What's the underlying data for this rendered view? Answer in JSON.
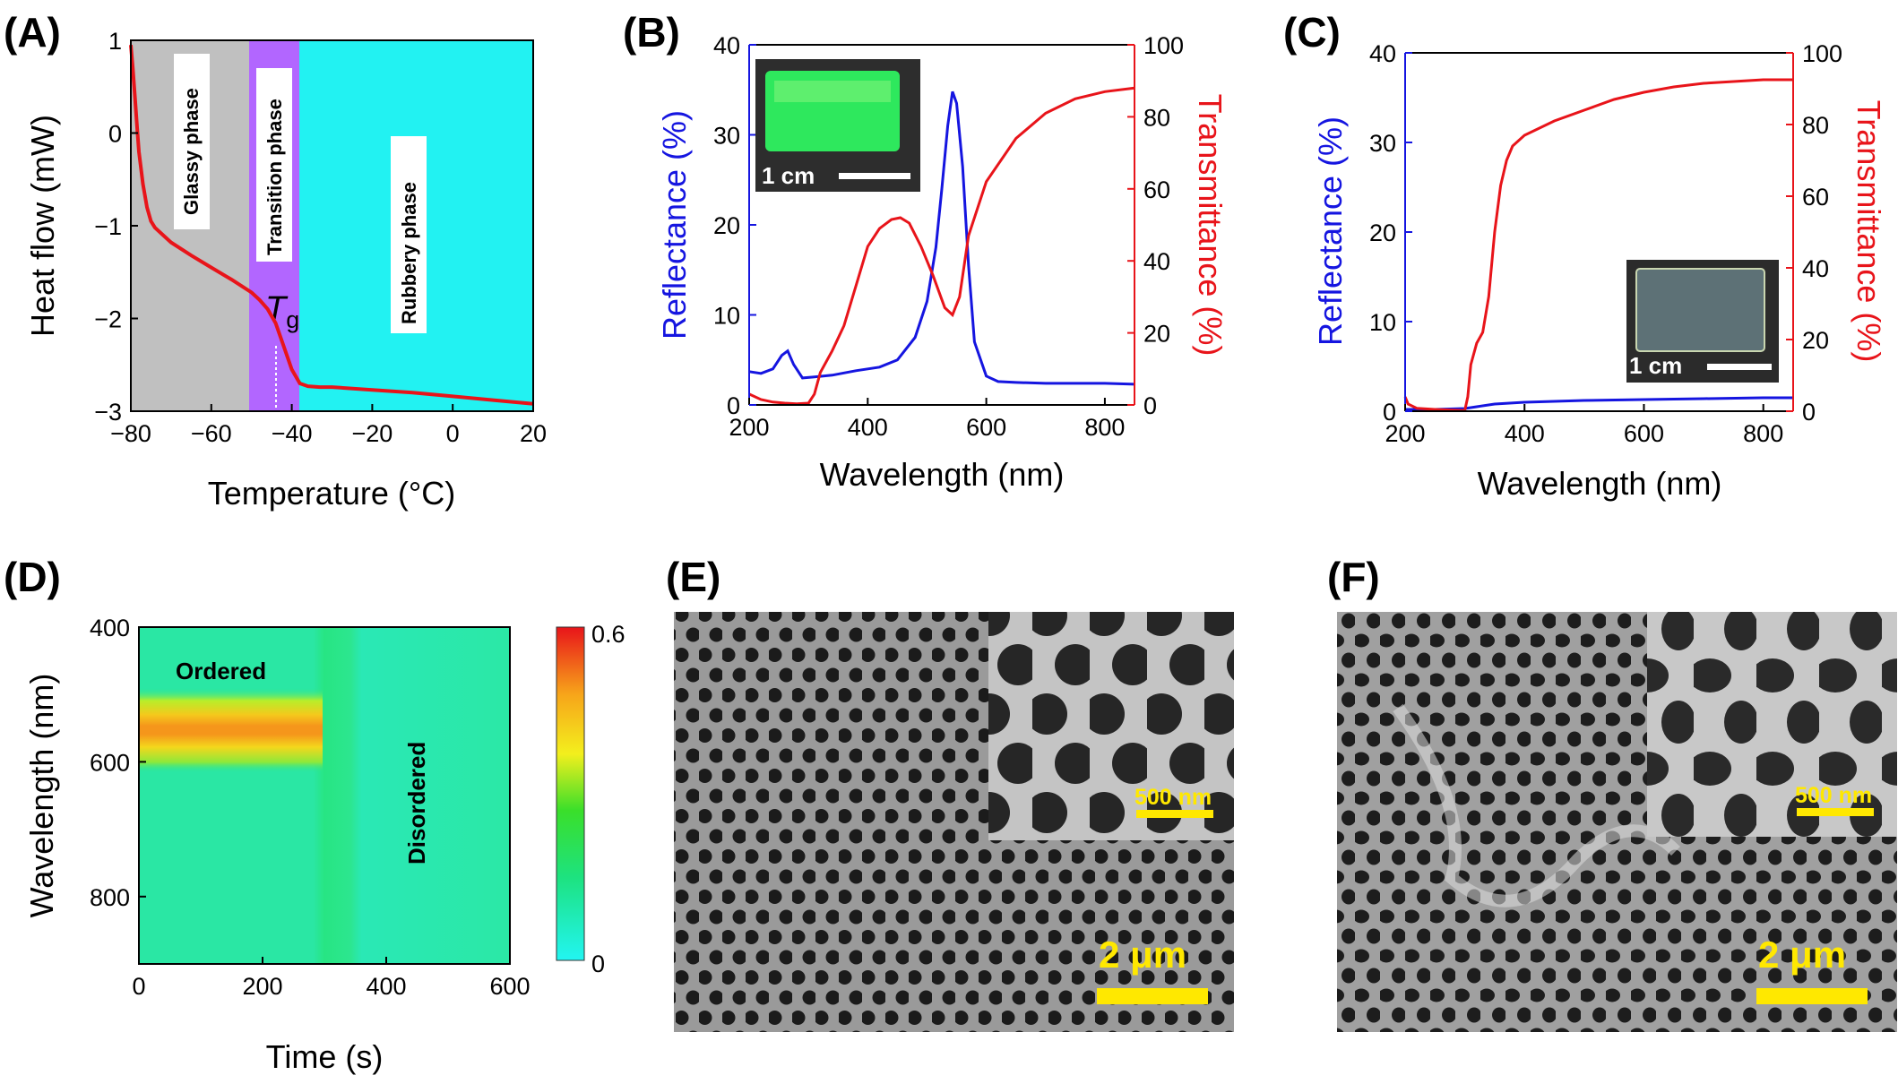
{
  "panels": {
    "A": {
      "label": "(A)"
    },
    "B": {
      "label": "(B)"
    },
    "C": {
      "label": "(C)"
    },
    "D": {
      "label": "(D)"
    },
    "E": {
      "label": "(E)"
    },
    "F": {
      "label": "(F)"
    }
  },
  "chart_data": [
    {
      "panel": "A",
      "type": "line",
      "xlabel": "Temperature (°C)",
      "ylabel": "Heat flow (mW)",
      "xlim": [
        -80,
        20
      ],
      "ylim": [
        -3,
        1
      ],
      "xticks": [
        "−80",
        "−60",
        "−40",
        "−20",
        "0",
        "20"
      ],
      "yticks": [
        "1",
        "0",
        "−1",
        "−2",
        "−3"
      ],
      "regions": [
        {
          "label": "Glassy phase",
          "from": -80,
          "to": -49,
          "color": "#c0c0c0"
        },
        {
          "label": "Transition phase",
          "from": -49,
          "to": -37.5,
          "color": "#b266ff"
        },
        {
          "label": "Rubbery phase",
          "from": -37.5,
          "to": 20,
          "color": "#22f2f2"
        }
      ],
      "annotation": {
        "text": "T",
        "subscript": "g",
        "x": -43.5
      },
      "series": [
        {
          "color": "#e8141a",
          "x": [
            -80,
            -79.5,
            -79,
            -78.5,
            -78,
            -77,
            -76,
            -75,
            -74,
            -72,
            -70,
            -65,
            -60,
            -55,
            -50,
            -48,
            -46,
            -44,
            -42,
            -40,
            -38,
            -36,
            -33,
            -30,
            -20,
            -10,
            0,
            10,
            20
          ],
          "y": [
            0.95,
            0.7,
            0.4,
            0.1,
            -0.2,
            -0.55,
            -0.8,
            -0.95,
            -1.02,
            -1.1,
            -1.18,
            -1.32,
            -1.45,
            -1.58,
            -1.72,
            -1.8,
            -1.9,
            -2.05,
            -2.3,
            -2.55,
            -2.7,
            -2.73,
            -2.74,
            -2.74,
            -2.77,
            -2.8,
            -2.84,
            -2.88,
            -2.92
          ]
        }
      ]
    },
    {
      "panel": "B",
      "type": "line",
      "xlabel": "Wavelength (nm)",
      "ylabel": "Reflectance (%)",
      "y2label": "Transmittance (%)",
      "xlim": [
        200,
        850
      ],
      "ylim": [
        0,
        40
      ],
      "y2lim": [
        0,
        100
      ],
      "xticks": [
        "200",
        "400",
        "600",
        "800"
      ],
      "yticks": [
        "0",
        "10",
        "20",
        "30",
        "40"
      ],
      "y2ticks": [
        "0",
        "20",
        "40",
        "60",
        "80",
        "100"
      ],
      "inset": {
        "scale_label": "1 cm"
      },
      "series": [
        {
          "axis": "left",
          "color": "#1515e0",
          "x": [
            200,
            220,
            240,
            255,
            265,
            275,
            290,
            310,
            340,
            380,
            420,
            450,
            480,
            500,
            515,
            525,
            535,
            543,
            550,
            560,
            570,
            580,
            600,
            620,
            650,
            700,
            750,
            800,
            850
          ],
          "y": [
            3.7,
            3.5,
            4.0,
            5.5,
            6.0,
            4.5,
            3.0,
            3.1,
            3.3,
            3.8,
            4.2,
            5.0,
            7.5,
            11.5,
            17.5,
            24.0,
            31.0,
            34.8,
            33.5,
            26.5,
            15.5,
            7.0,
            3.2,
            2.6,
            2.5,
            2.4,
            2.4,
            2.4,
            2.3
          ]
        },
        {
          "axis": "right",
          "color": "#e8141a",
          "x": [
            200,
            220,
            240,
            260,
            280,
            300,
            310,
            320,
            340,
            360,
            380,
            400,
            420,
            440,
            455,
            470,
            490,
            510,
            530,
            543,
            555,
            570,
            600,
            650,
            700,
            750,
            800,
            850
          ],
          "y": [
            3,
            1.5,
            0.8,
            0.5,
            0.3,
            0.5,
            3,
            9,
            15,
            22,
            33,
            44,
            49,
            51.5,
            52,
            50.5,
            44,
            36,
            27,
            25,
            30,
            47,
            62,
            74,
            81,
            85,
            87,
            88
          ]
        }
      ]
    },
    {
      "panel": "C",
      "type": "line",
      "xlabel": "Wavelength (nm)",
      "ylabel": "Reflectance (%)",
      "y2label": "Transmittance (%)",
      "xlim": [
        200,
        850
      ],
      "ylim": [
        0,
        40
      ],
      "y2lim": [
        0,
        100
      ],
      "xticks": [
        "200",
        "400",
        "600",
        "800"
      ],
      "yticks": [
        "0",
        "10",
        "20",
        "30",
        "40"
      ],
      "y2ticks": [
        "0",
        "20",
        "40",
        "60",
        "80",
        "100"
      ],
      "inset": {
        "scale_label": "1 cm"
      },
      "series": [
        {
          "axis": "left",
          "color": "#1515e0",
          "x": [
            200,
            250,
            300,
            320,
            350,
            400,
            500,
            600,
            700,
            800,
            850
          ],
          "y": [
            0.2,
            0.2,
            0.3,
            0.5,
            0.8,
            1.0,
            1.2,
            1.3,
            1.4,
            1.5,
            1.5
          ]
        },
        {
          "axis": "right",
          "color": "#e8141a",
          "x": [
            200,
            205,
            220,
            250,
            280,
            300,
            305,
            310,
            320,
            330,
            340,
            350,
            360,
            370,
            380,
            400,
            450,
            500,
            550,
            600,
            650,
            700,
            750,
            800,
            850
          ],
          "y": [
            4,
            2,
            0.8,
            0.5,
            0.3,
            0.2,
            4,
            13,
            19,
            22,
            32,
            50,
            63,
            70,
            74,
            77,
            81,
            84,
            87,
            89,
            90.5,
            91.5,
            92,
            92.5,
            92.5
          ]
        }
      ]
    },
    {
      "panel": "D",
      "type": "heatmap",
      "xlabel": "Time (s)",
      "ylabel": "Wavelength (nm)",
      "xlim": [
        0,
        600
      ],
      "ylim": [
        400,
        900
      ],
      "xticks": [
        "0",
        "200",
        "400",
        "600"
      ],
      "yticks": [
        "400",
        "600",
        "800"
      ],
      "colorbar": {
        "min": "0",
        "max": "0.6",
        "colors": [
          "#22f5f2",
          "#1de27f",
          "#3adf2a",
          "#f3ef1d",
          "#f7a41a",
          "#e8141a"
        ]
      },
      "annotations": [
        "Ordered",
        "Disordered"
      ],
      "ordered_band": {
        "time_end_s": 300,
        "peak_wavelength_nm": 545,
        "peak_value": 0.6
      }
    }
  ],
  "images": {
    "E": {
      "scale_bar_label": "2 μm",
      "inset_scale_label": "500 nm"
    },
    "F": {
      "scale_bar_label": "2 μm",
      "inset_scale_label": "500 nm"
    }
  }
}
